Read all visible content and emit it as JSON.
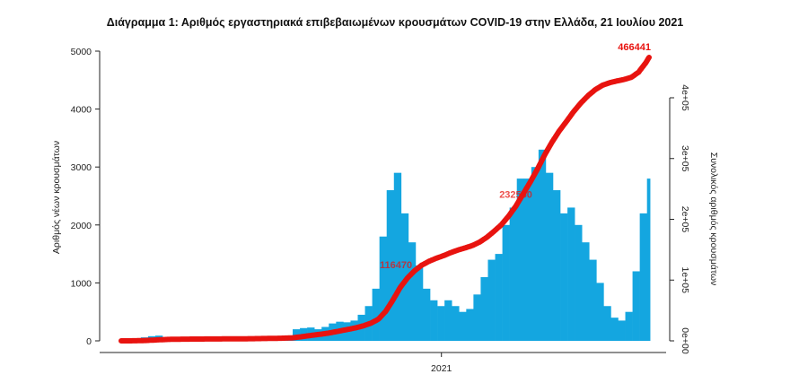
{
  "chart_data": {
    "type": "bar+line",
    "title": "Διάγραμμα 1: Αριθμός εργαστηριακά επιβεβαιωμένων κρουσμάτων COVID-19 στην Ελλάδα, 21 Ιουλίου 2021",
    "ylabel": "Αριθμός νέων κρουσμάτων",
    "y2label": "Συνολικός αριθμός κρουσμάτων",
    "xlabel": "",
    "x_ticks": [
      {
        "date": "2021-01-01",
        "label": "2021"
      }
    ],
    "y_ticks": [
      "0",
      "1000",
      "2000",
      "3000",
      "4000",
      "5000"
    ],
    "y_tick_values": [
      0,
      1000,
      2000,
      3000,
      4000,
      5000
    ],
    "y2_ticks": [
      "0e+00",
      "1e+05",
      "2e+05",
      "3e+05",
      "4e+05"
    ],
    "y2_tick_values": [
      0,
      100000,
      200000,
      300000,
      400000
    ],
    "ylim": [
      0,
      5000
    ],
    "y2lim": [
      0,
      400000
    ],
    "xlim": [
      "2020-02-26",
      "2021-07-21"
    ],
    "grid": false,
    "bar_color": "#14a6e0",
    "line_color": "#e8130f",
    "bars": {
      "name": "",
      "note": "approximate weekly daily-average new cases, week start dates",
      "start_week": "2020-02-24",
      "values": [
        2,
        10,
        30,
        60,
        80,
        90,
        60,
        40,
        20,
        15,
        10,
        10,
        8,
        8,
        10,
        10,
        12,
        15,
        20,
        25,
        25,
        30,
        40,
        50,
        200,
        220,
        230,
        200,
        240,
        300,
        330,
        320,
        350,
        450,
        600,
        900,
        1800,
        2600,
        2900,
        2200,
        1700,
        1300,
        900,
        700,
        600,
        700,
        600,
        500,
        550,
        800,
        1100,
        1400,
        1500,
        2000,
        2300,
        2800,
        2800,
        3000,
        3300,
        2900,
        2600,
        2200,
        2300,
        2000,
        1700,
        1400,
        1000,
        600,
        400,
        350,
        500,
        1200,
        2200,
        2800
      ]
    },
    "cumulative_labels": [
      {
        "date": "2020-11-18",
        "value": 116470,
        "label": "116470"
      },
      {
        "date": "2021-03-14",
        "value": 232550,
        "label": "232550"
      },
      {
        "date": "2021-07-21",
        "value": 466441,
        "label": "466441"
      }
    ]
  }
}
